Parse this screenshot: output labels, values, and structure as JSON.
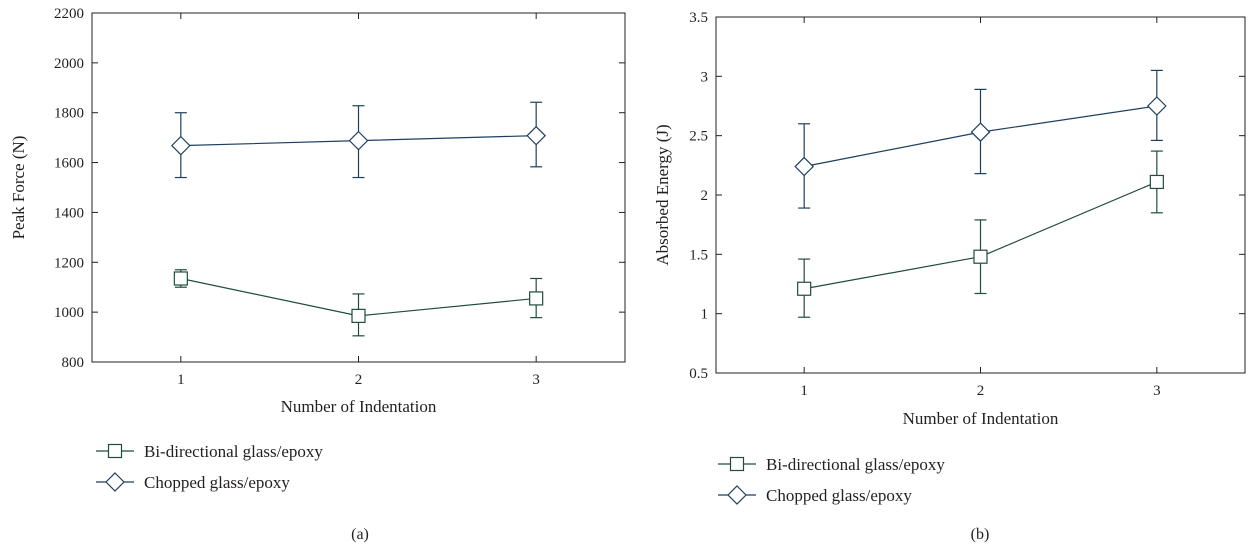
{
  "colors": {
    "axis": "#231f20",
    "bidirectional": "#1f4d3a",
    "chopped": "#1d3f5e"
  },
  "chart_data": [
    {
      "type": "line",
      "panel_label": "(a)",
      "xlabel": "Number of Indentation",
      "ylabel": "Peak Force (N)",
      "x": [
        1,
        2,
        3
      ],
      "xlim": [
        0.5,
        3.5
      ],
      "ylim": [
        800,
        2200
      ],
      "xticks": [
        1,
        2,
        3
      ],
      "yticks": [
        800,
        1000,
        1200,
        1400,
        1600,
        1800,
        2000,
        2200
      ],
      "legend_position": "below",
      "series": [
        {
          "name": "Bi-directional glass/epoxy",
          "marker": "square",
          "color_key": "bidirectional",
          "values": [
            1135,
            985,
            1055
          ],
          "err_low": [
            1100,
            905,
            978
          ],
          "err_high": [
            1170,
            1073,
            1135
          ]
        },
        {
          "name": "Chopped glass/epoxy",
          "marker": "diamond",
          "color_key": "chopped",
          "values": [
            1668,
            1688,
            1708
          ],
          "err_low": [
            1540,
            1540,
            1583
          ],
          "err_high": [
            1800,
            1828,
            1842
          ]
        }
      ]
    },
    {
      "type": "line",
      "panel_label": "(b)",
      "xlabel": "Number of Indentation",
      "ylabel": "Absorbed Energy (J)",
      "x": [
        1,
        2,
        3
      ],
      "xlim": [
        0.5,
        3.5
      ],
      "ylim": [
        0.5,
        3.5
      ],
      "xticks": [
        1,
        2,
        3
      ],
      "yticks": [
        0.5,
        1,
        1.5,
        2,
        2.5,
        3,
        3.5
      ],
      "legend_position": "below",
      "series": [
        {
          "name": "Bi-directional glass/epoxy",
          "marker": "square",
          "color_key": "bidirectional",
          "values": [
            1.21,
            1.48,
            2.11
          ],
          "err_low": [
            0.97,
            1.17,
            1.85
          ],
          "err_high": [
            1.46,
            1.79,
            2.37
          ]
        },
        {
          "name": "Chopped glass/epoxy",
          "marker": "diamond",
          "color_key": "chopped",
          "values": [
            2.24,
            2.53,
            2.75
          ],
          "err_low": [
            1.89,
            2.18,
            2.46
          ],
          "err_high": [
            2.6,
            2.89,
            3.05
          ]
        }
      ]
    }
  ]
}
